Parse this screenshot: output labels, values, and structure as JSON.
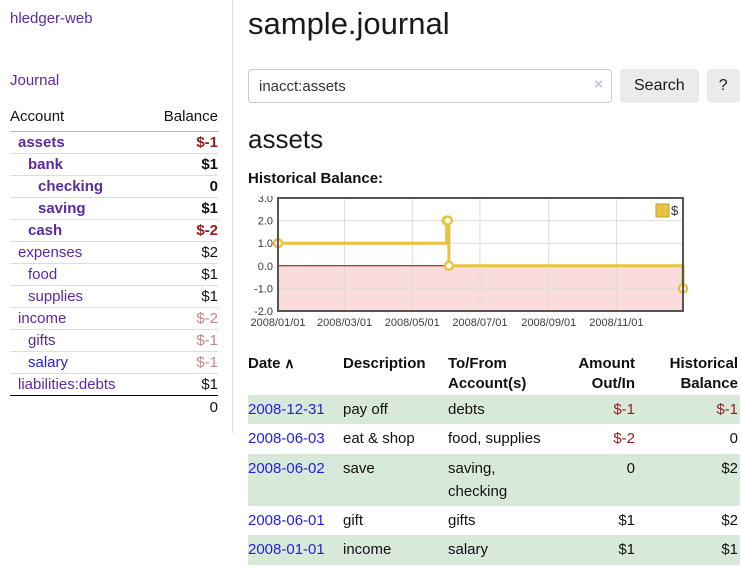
{
  "app": {
    "title": "hledger-web",
    "nav_journal": "Journal"
  },
  "sidebar": {
    "accounts_header": {
      "account": "Account",
      "balance": "Balance"
    },
    "accounts": [
      {
        "name": "assets",
        "indent": 0,
        "bold": true,
        "balance": "$-1",
        "balance_style": "negstrong",
        "link_style": "purple"
      },
      {
        "name": "bank",
        "indent": 1,
        "bold": true,
        "balance": "$1",
        "balance_style": "",
        "link_style": "purple"
      },
      {
        "name": "checking",
        "indent": 2,
        "bold": true,
        "balance": "0",
        "balance_style": "",
        "link_style": "purple"
      },
      {
        "name": "saving",
        "indent": 2,
        "bold": true,
        "balance": "$1",
        "balance_style": "",
        "link_style": "purple"
      },
      {
        "name": "cash",
        "indent": 1,
        "bold": true,
        "balance": "$-2",
        "balance_style": "negstrong",
        "link_style": "purple"
      },
      {
        "name": "expenses",
        "indent": 0,
        "bold": false,
        "balance": "$2",
        "balance_style": "",
        "link_style": "purple"
      },
      {
        "name": "food",
        "indent": 1,
        "bold": false,
        "balance": "$1",
        "balance_style": "",
        "link_style": "purple"
      },
      {
        "name": "supplies",
        "indent": 1,
        "bold": false,
        "balance": "$1",
        "balance_style": "",
        "link_style": "purple"
      },
      {
        "name": "income",
        "indent": 0,
        "bold": false,
        "balance": "$-2",
        "balance_style": "negsoft",
        "link_style": "purple"
      },
      {
        "name": "gifts",
        "indent": 1,
        "bold": false,
        "balance": "$-1",
        "balance_style": "negsoft",
        "link_style": "purple"
      },
      {
        "name": "salary",
        "indent": 1,
        "bold": false,
        "balance": "$-1",
        "balance_style": "negsoft",
        "link_style": "blue"
      },
      {
        "name": "liabilities:debts",
        "indent": 0,
        "bold": false,
        "balance": "$1",
        "balance_style": "",
        "link_style": "purple"
      }
    ],
    "total": "0"
  },
  "main": {
    "title": "sample.journal",
    "search": {
      "value": "inacct:assets",
      "clear_icon": "×",
      "button_label": "Search",
      "help_label": "?"
    },
    "account_heading": "assets",
    "chart_label": "Historical Balance:"
  },
  "chart_data": {
    "type": "line",
    "line_style": "step",
    "title": "Historical Balance:",
    "series": [
      {
        "name": "$",
        "color": "#e8c340",
        "points": [
          [
            "2008-01-01",
            1
          ],
          [
            "2008-06-01",
            2
          ],
          [
            "2008-06-02",
            2
          ],
          [
            "2008-06-03",
            0
          ],
          [
            "2008-12-31",
            -1
          ]
        ]
      }
    ],
    "xlim": [
      "2008-01-01",
      "2008-12-31"
    ],
    "ylim": [
      -2,
      3
    ],
    "y_ticks": [
      "3.0",
      "2.0",
      "1.0",
      "0.0",
      "-1.0",
      "-2.0"
    ],
    "x_ticks": [
      "2008/01/01",
      "2008/03/01",
      "2008/05/01",
      "2008/07/01",
      "2008/09/01",
      "2008/11/01"
    ],
    "grid": true,
    "legend_position": "top-right",
    "negative_region_color": "#fbdcdc",
    "zero_line_color": "#8b0000",
    "border_color": "#545454",
    "grid_color": "#dcdcdc"
  },
  "register": {
    "headers": [
      {
        "line1": "Date",
        "line2": "",
        "sort_arrow": "∧",
        "align": "left"
      },
      {
        "line1": "Description",
        "line2": "",
        "align": "left"
      },
      {
        "line1": "To/From",
        "line2": "Account(s)",
        "align": "left"
      },
      {
        "line1": "Amount",
        "line2": "Out/In",
        "align": "right"
      },
      {
        "line1": "Historical",
        "line2": "Balance",
        "align": "right"
      }
    ],
    "rows": [
      {
        "date": "2008-12-31",
        "description": "pay off",
        "accounts": "debts",
        "amount": "$-1",
        "amount_negative": true,
        "balance": "$-1",
        "balance_negative": true,
        "shaded": true
      },
      {
        "date": "2008-06-03",
        "description": "eat & shop",
        "accounts": "food, supplies",
        "amount": "$-2",
        "amount_negative": true,
        "balance": "0",
        "balance_negative": false,
        "shaded": false
      },
      {
        "date": "2008-06-02",
        "description": "save",
        "accounts": "saving, checking",
        "amount": "0",
        "amount_negative": false,
        "balance": "$2",
        "balance_negative": false,
        "shaded": true
      },
      {
        "date": "2008-06-01",
        "description": "gift",
        "accounts": "gifts",
        "amount": "$1",
        "amount_negative": false,
        "balance": "$2",
        "balance_negative": false,
        "shaded": false
      },
      {
        "date": "2008-01-01",
        "description": "income",
        "accounts": "salary",
        "amount": "$1",
        "amount_negative": false,
        "balance": "$1",
        "balance_negative": false,
        "shaded": true
      }
    ]
  }
}
